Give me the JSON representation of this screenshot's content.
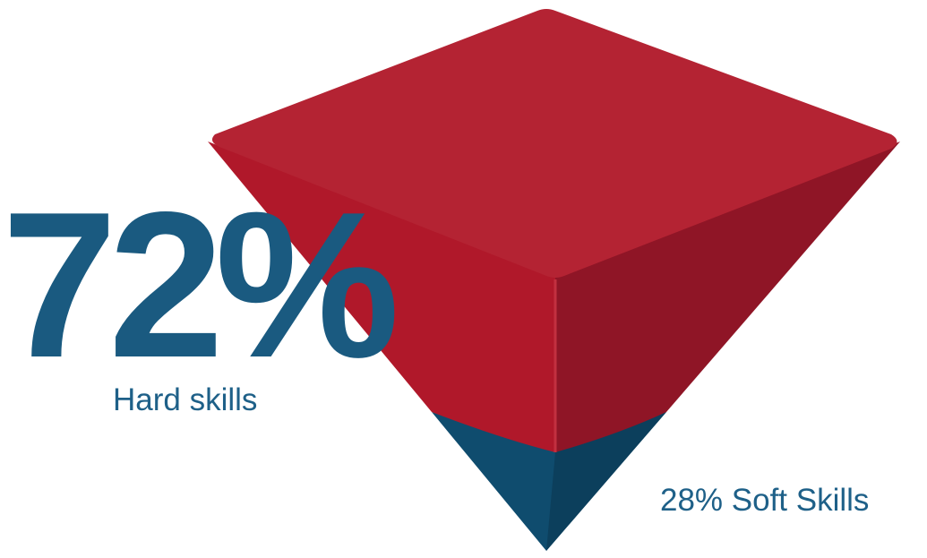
{
  "headline": "72%",
  "hard_label": "Hard skills",
  "soft_label": "28% Soft Skills"
}
